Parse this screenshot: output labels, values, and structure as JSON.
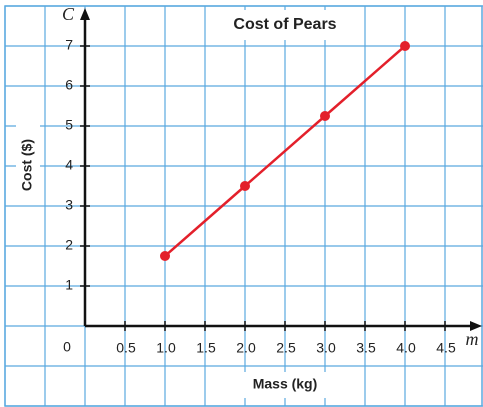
{
  "chart_data": {
    "type": "line",
    "title": "Cost of Pears",
    "x_label": "Mass (kg)",
    "y_label": "Cost ($)",
    "x_axis_symbol": "m",
    "y_axis_symbol": "C",
    "origin_label": "0",
    "x": [
      1,
      2,
      3,
      4
    ],
    "series": [
      {
        "name": "Cost",
        "color": "#e3202b",
        "values": [
          1.75,
          3.5,
          5.25,
          7
        ]
      }
    ],
    "xlim": [
      -1,
      5
    ],
    "ylim": [
      -2,
      8
    ],
    "xticks": [
      0.5,
      {
        "value": 1,
        "label": "1.0"
      },
      1.5,
      {
        "value": 2,
        "label": "2.0"
      },
      2.5,
      {
        "value": 3,
        "label": "3.0"
      },
      3.5,
      {
        "value": 4,
        "label": "4.0"
      },
      4.5
    ],
    "yticks": [
      1,
      2,
      3,
      4,
      5,
      6,
      7
    ],
    "grid": true,
    "grid_color": "#5aa9df"
  }
}
